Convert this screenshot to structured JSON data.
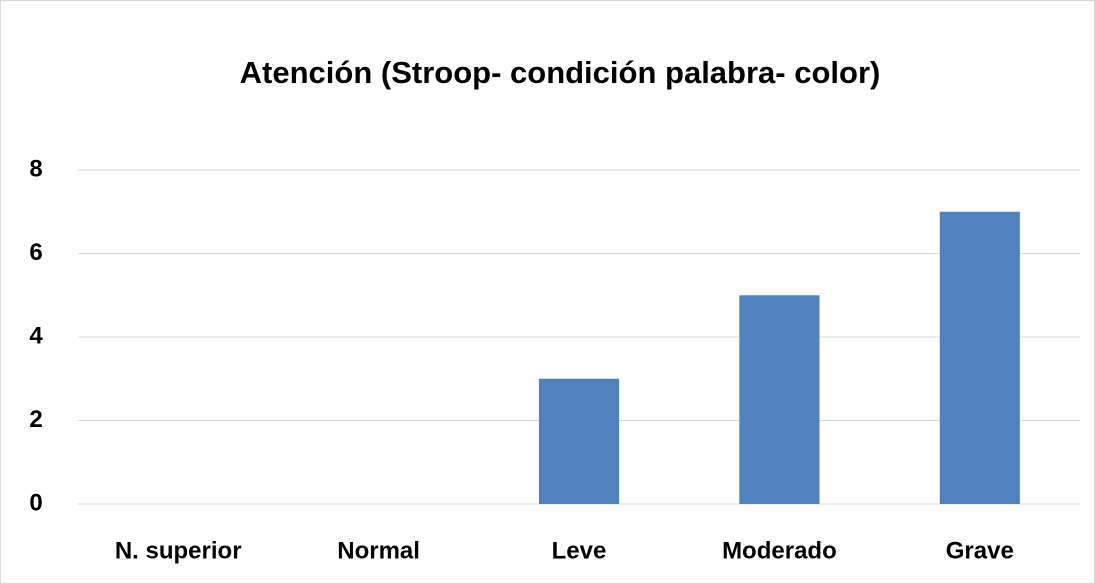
{
  "chart_data": {
    "type": "bar",
    "title": "Atención (Stroop- condición palabra- color)",
    "categories": [
      "N. superior",
      "Normal",
      "Leve",
      "Moderado",
      "Grave"
    ],
    "values": [
      0,
      0,
      3,
      5,
      7
    ],
    "color": "#4f81bd",
    "ylim": [
      0,
      8
    ],
    "yticks": [
      0,
      2,
      4,
      6,
      8
    ],
    "grid": true
  }
}
